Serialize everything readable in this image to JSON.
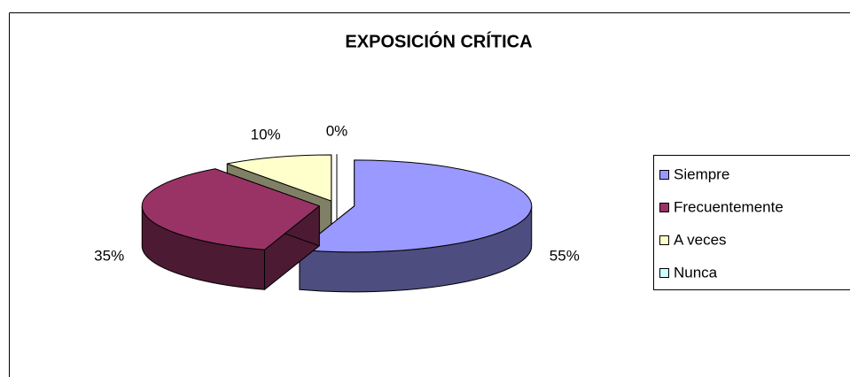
{
  "chart_data": {
    "type": "pie",
    "title": "EXPOSICIÓN CRÍTICA",
    "categories": [
      "Siempre",
      "Frecuentemente",
      "A veces",
      "Nunca"
    ],
    "values": [
      55,
      35,
      10,
      0
    ],
    "value_labels": [
      "55%",
      "35%",
      "10%",
      "0%"
    ],
    "colors": [
      "#9999ff",
      "#993366",
      "#ffffcc",
      "#ccffff"
    ],
    "legend": "right"
  }
}
